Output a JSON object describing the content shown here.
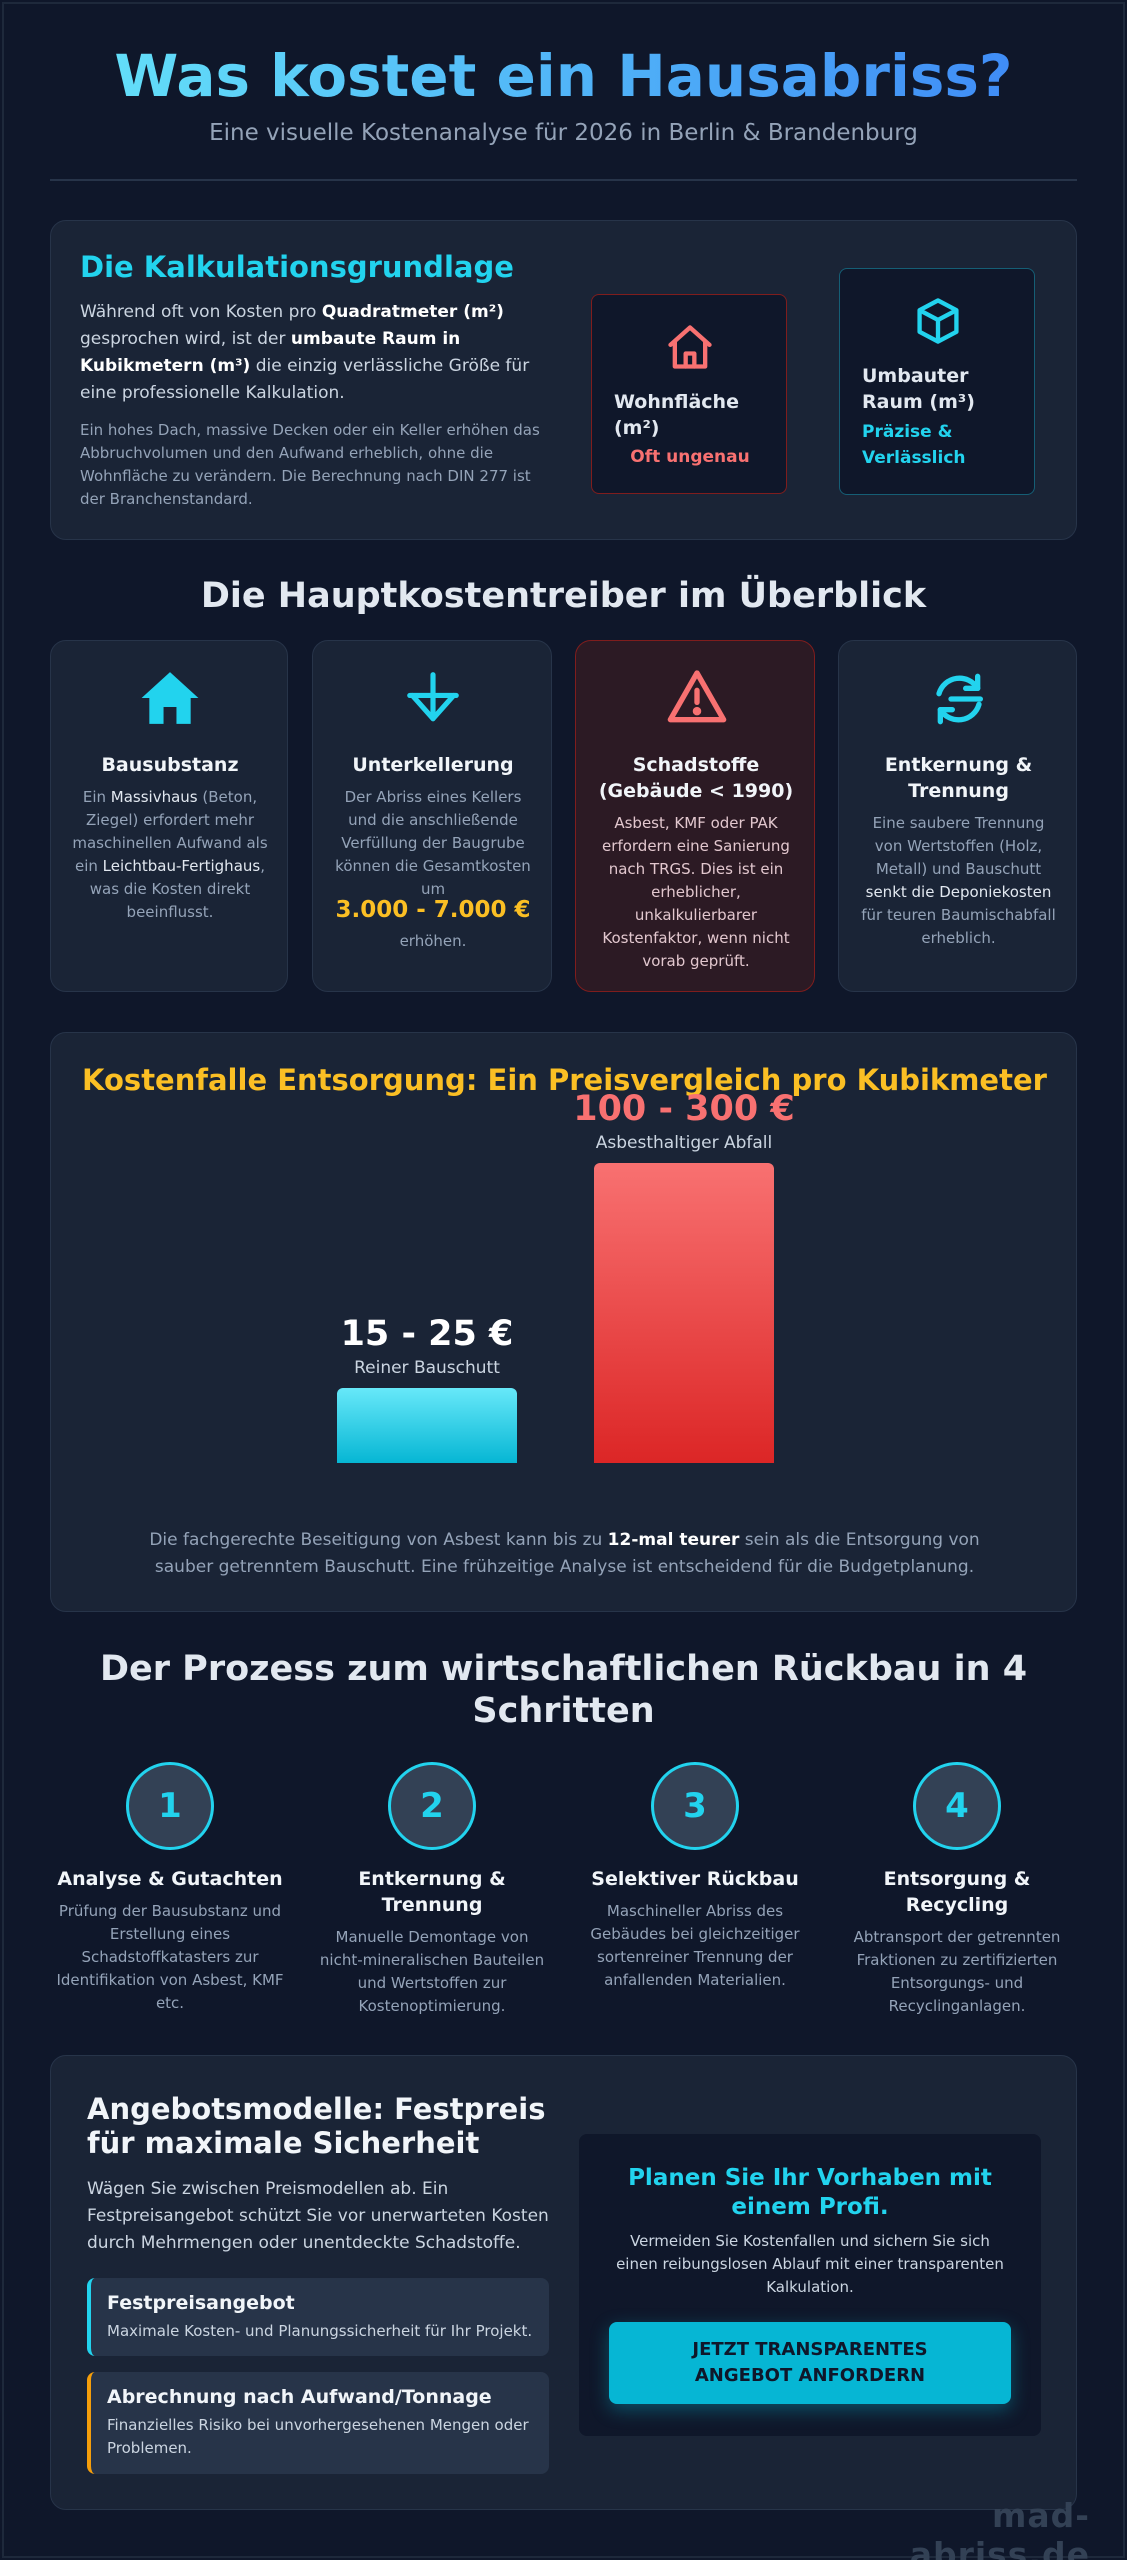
{
  "header": {
    "title": "Was kostet ein Hausabriss?",
    "subtitle": "Eine visuelle Kostenanalyse für 2026 in Berlin & Brandenburg"
  },
  "basis": {
    "title": "Die Kalkulationsgrundlage",
    "p1_a": "Während oft von Kosten pro ",
    "p1_b": "Quadratmeter (m²)",
    "p1_c": " gesprochen wird, ist der ",
    "p1_d": "umbaute Raum in Kubikmetern (m³)",
    "p1_e": " die einzig verlässliche Größe für eine professionelle Kalkulation.",
    "p2": "Ein hohes Dach, massive Decken oder ein Keller erhöhen das Abbruchvolumen und den Aufwand erheblich, ohne die Wohnfläche zu verändern. Die Berechnung nach DIN 277 ist der Branchenstandard.",
    "box1_title": "Wohnfläche (m²)",
    "box1_note": "Oft ungenau",
    "box2_title": "Umbauter Raum (m³)",
    "box2_note": "Präzise & Verlässlich"
  },
  "drivers": {
    "title": "Die Hauptkostentreiber im Überblick",
    "items": [
      {
        "title": "Bausubstanz",
        "t1": "Ein ",
        "b1": "Massivhaus",
        "t2": " (Beton, Ziegel) erfordert mehr maschinellen Aufwand als ein ",
        "b2": "Leichtbau-Fertighaus",
        "t3": ", was die Kosten direkt beeinflusst."
      },
      {
        "title": "Unterkellerung",
        "text": "Der Abriss eines Kellers und die anschließende Verfüllung der Baugrube können die Gesamtkosten um",
        "price": "3.000 - 7.000 €",
        "after": "erhöhen."
      },
      {
        "title": "Schadstoffe (Gebäude < 1990)",
        "text": "Asbest, KMF oder PAK erfordern eine Sanierung nach TRGS. Dies ist ein erheblicher, unkalkulierbarer Kostenfaktor, wenn nicht vorab geprüft."
      },
      {
        "title": "Entkernung & Trennung",
        "t1": "Eine saubere Trennung von Wertstoffen (Holz, Metall) und Bauschutt ",
        "b1": "senkt die Deponiekosten",
        "t2": " für teuren Baumischabfall erheblich."
      }
    ]
  },
  "disposal": {
    "title": "Kostenfalle Entsorgung: Ein Preisvergleich pro Kubikmeter",
    "note_a": "Die fachgerechte Beseitigung von Asbest kann bis zu ",
    "note_b": "12-mal teurer",
    "note_c": " sein als die Entsorgung von sauber getrenntem Bauschutt. Eine frühzeitige Analyse ist entscheidend für die Budgetplanung."
  },
  "chart_data": {
    "type": "bar",
    "categories": [
      "Reiner Bauschutt",
      "Asbesthaltiger Abfall"
    ],
    "value_labels": [
      "15 - 25 €",
      "100 - 300 €"
    ],
    "ranges": [
      [
        15,
        25
      ],
      [
        100,
        300
      ]
    ],
    "bar_fraction": [
      0.25,
      1.0
    ],
    "colors": [
      "#22d3ee",
      "#ef4444"
    ]
  },
  "process": {
    "title": "Der Prozess zum wirtschaftlichen Rückbau in 4 Schritten",
    "steps": [
      {
        "num": "1",
        "title": "Analyse & Gutachten",
        "text": "Prüfung der Bausubstanz und Erstellung eines Schadstoffkatasters zur Identifikation von Asbest, KMF etc."
      },
      {
        "num": "2",
        "title": "Entkernung & Trennung",
        "text": "Manuelle Demontage von nicht-mineralischen Bauteilen und Wertstoffen zur Kostenoptimierung."
      },
      {
        "num": "3",
        "title": "Selektiver Rückbau",
        "text": "Maschineller Abriss des Gebäudes bei gleichzeitiger sortenreiner Trennung der anfallenden Materialien."
      },
      {
        "num": "4",
        "title": "Entsorgung & Recycling",
        "text": "Abtransport der getrennten Fraktionen zu zertifizierten Entsorgungs- und Recyclinganlagen."
      }
    ]
  },
  "offers": {
    "title": "Angebotsmodelle: Festpreis für maximale Sicherheit",
    "text": "Wägen Sie zwischen Preismodellen ab. Ein Festpreisangebot schützt Sie vor unerwarteten Kosten durch Mehrmengen oder unentdeckte Schadstoffe.",
    "opt1_title": "Festpreisangebot",
    "opt1_text": "Maximale Kosten- und Planungssicherheit für Ihr Projekt.",
    "opt2_title": "Abrechnung nach Aufwand/Tonnage",
    "opt2_text": "Finanzielles Risiko bei unvorhergesehenen Mengen oder Problemen.",
    "cta_title": "Planen Sie Ihr Vorhaben mit einem Profi.",
    "cta_text": "Vermeiden Sie Kostenfallen und sichern Sie sich einen reibungslosen Ablauf mit einer transparenten Kalkulation.",
    "cta_button": "JETZT TRANSPARENTES ANGEBOT ANFORDERN"
  },
  "footer": {
    "watermark": "mad-abriss.de"
  },
  "icons": [
    "house-outline-icon",
    "cube-icon",
    "house-solid-icon",
    "basement-down-icon",
    "warning-triangle-icon",
    "recycle-icon"
  ]
}
